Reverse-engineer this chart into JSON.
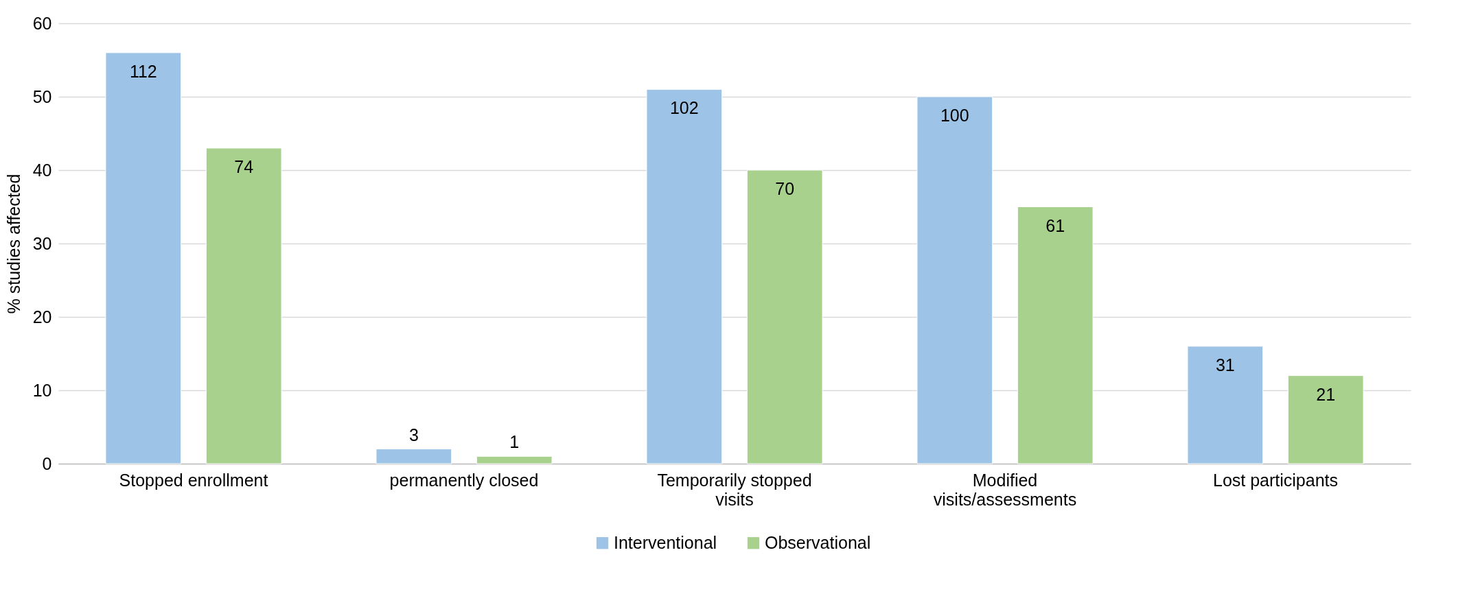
{
  "chart_data": {
    "type": "bar",
    "ylabel": "% studies affected",
    "categories": [
      "Stopped enrollment",
      "permanently closed",
      "Temporarily stopped visits",
      "Modified visits/assessments",
      "Lost participants"
    ],
    "series": [
      {
        "name": "Interventional",
        "color": "#9dc3e6",
        "values": [
          56,
          2,
          51,
          50,
          16
        ]
      },
      {
        "name": "Observational",
        "color": "#a9d18e",
        "values": [
          43,
          1,
          40,
          35,
          12
        ]
      }
    ],
    "annotations": [
      "112",
      "3",
      "102",
      "100",
      "31",
      "74",
      "1",
      "70",
      "61",
      "21"
    ],
    "ylim": [
      0,
      60
    ],
    "yticks": [
      0,
      10,
      20,
      30,
      40,
      50,
      60
    ],
    "grid": "y",
    "legend": "bottom"
  }
}
